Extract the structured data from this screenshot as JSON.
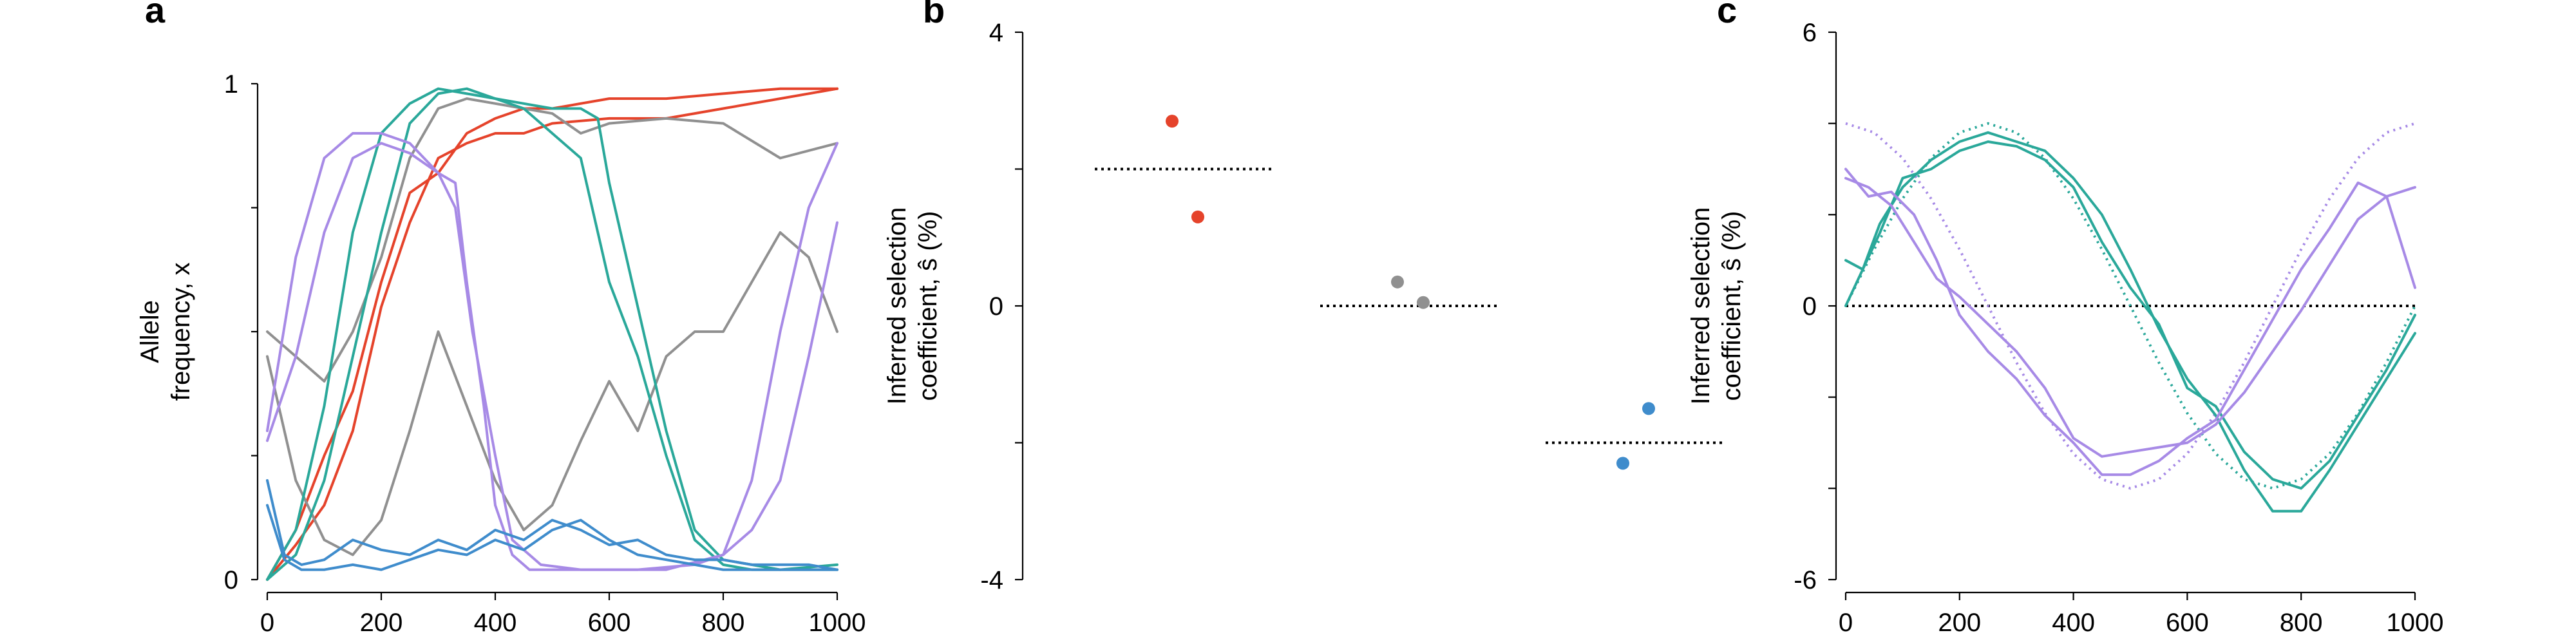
{
  "colors": {
    "red": "#e5432b",
    "gray": "#909090",
    "teal": "#2aa89a",
    "purple": "#a78ae6",
    "blue": "#3f8ccc"
  },
  "chart_data": [
    {
      "panel": "a",
      "type": "line",
      "ylabel": "Allele\nfrequency, x",
      "xlim": [
        0,
        1000
      ],
      "ylim": [
        0,
        1
      ],
      "xticks": [
        0,
        200,
        400,
        600,
        800,
        1000
      ],
      "yticks": [
        0,
        1
      ],
      "xtick_labels": [
        "0",
        "200",
        "400",
        "600",
        "800",
        "1000"
      ],
      "ytick_labels": [
        "0",
        "1"
      ],
      "series": [
        {
          "color": "red",
          "x": [
            0,
            50,
            100,
            150,
            200,
            250,
            300,
            350,
            400,
            450,
            500,
            600,
            700,
            800,
            900,
            1000
          ],
          "y": [
            0.0,
            0.1,
            0.25,
            0.38,
            0.6,
            0.78,
            0.82,
            0.9,
            0.93,
            0.95,
            0.95,
            0.97,
            0.97,
            0.98,
            0.99,
            0.99
          ]
        },
        {
          "color": "red",
          "x": [
            0,
            50,
            100,
            150,
            200,
            250,
            300,
            350,
            400,
            450,
            500,
            600,
            700,
            800,
            900,
            1000
          ],
          "y": [
            0.0,
            0.07,
            0.15,
            0.3,
            0.55,
            0.72,
            0.85,
            0.88,
            0.9,
            0.9,
            0.92,
            0.93,
            0.93,
            0.95,
            0.97,
            0.99
          ]
        },
        {
          "color": "gray",
          "x": [
            0,
            50,
            100,
            150,
            200,
            250,
            300,
            350,
            400,
            450,
            500,
            550,
            600,
            700,
            800,
            900,
            1000
          ],
          "y": [
            0.5,
            0.45,
            0.4,
            0.5,
            0.65,
            0.85,
            0.95,
            0.97,
            0.96,
            0.95,
            0.94,
            0.9,
            0.92,
            0.93,
            0.92,
            0.85,
            0.88
          ]
        },
        {
          "color": "gray",
          "x": [
            0,
            50,
            100,
            150,
            200,
            250,
            300,
            350,
            400,
            450,
            500,
            550,
            600,
            650,
            700,
            750,
            800,
            850,
            900,
            950,
            1000
          ],
          "y": [
            0.45,
            0.2,
            0.08,
            0.05,
            0.12,
            0.3,
            0.5,
            0.35,
            0.2,
            0.1,
            0.15,
            0.28,
            0.4,
            0.3,
            0.45,
            0.5,
            0.5,
            0.6,
            0.7,
            0.65,
            0.5
          ]
        },
        {
          "color": "teal",
          "x": [
            0,
            50,
            100,
            150,
            200,
            250,
            300,
            350,
            400,
            450,
            500,
            550,
            580,
            600,
            650,
            700,
            750,
            800,
            900,
            1000
          ],
          "y": [
            0.0,
            0.1,
            0.35,
            0.7,
            0.9,
            0.96,
            0.99,
            0.98,
            0.97,
            0.96,
            0.95,
            0.95,
            0.93,
            0.8,
            0.55,
            0.3,
            0.1,
            0.04,
            0.02,
            0.02
          ]
        },
        {
          "color": "teal",
          "x": [
            0,
            50,
            100,
            150,
            200,
            250,
            300,
            350,
            400,
            450,
            500,
            550,
            600,
            650,
            700,
            750,
            800,
            850,
            900,
            1000
          ],
          "y": [
            0.0,
            0.05,
            0.2,
            0.45,
            0.7,
            0.92,
            0.98,
            0.99,
            0.97,
            0.95,
            0.9,
            0.85,
            0.6,
            0.45,
            0.25,
            0.08,
            0.03,
            0.02,
            0.02,
            0.03
          ]
        },
        {
          "color": "purple",
          "x": [
            0,
            50,
            100,
            150,
            200,
            250,
            300,
            330,
            350,
            380,
            400,
            430,
            460,
            500,
            600,
            700,
            800,
            850,
            900,
            950,
            1000
          ],
          "y": [
            0.3,
            0.65,
            0.85,
            0.9,
            0.9,
            0.88,
            0.82,
            0.8,
            0.6,
            0.35,
            0.15,
            0.05,
            0.02,
            0.02,
            0.02,
            0.02,
            0.05,
            0.2,
            0.5,
            0.75,
            0.88
          ]
        },
        {
          "color": "purple",
          "x": [
            0,
            50,
            100,
            150,
            200,
            250,
            300,
            330,
            360,
            400,
            430,
            480,
            550,
            650,
            750,
            800,
            850,
            900,
            950,
            1000
          ],
          "y": [
            0.28,
            0.45,
            0.7,
            0.85,
            0.88,
            0.86,
            0.82,
            0.75,
            0.5,
            0.25,
            0.08,
            0.03,
            0.02,
            0.02,
            0.03,
            0.05,
            0.1,
            0.2,
            0.45,
            0.72
          ]
        },
        {
          "color": "blue",
          "x": [
            0,
            30,
            60,
            100,
            150,
            200,
            250,
            300,
            350,
            400,
            450,
            500,
            550,
            600,
            650,
            700,
            750,
            800,
            850,
            900,
            950,
            1000
          ],
          "y": [
            0.2,
            0.05,
            0.03,
            0.04,
            0.08,
            0.06,
            0.05,
            0.08,
            0.06,
            0.1,
            0.08,
            0.12,
            0.1,
            0.07,
            0.08,
            0.05,
            0.04,
            0.04,
            0.03,
            0.03,
            0.03,
            0.02
          ]
        },
        {
          "color": "blue",
          "x": [
            0,
            30,
            60,
            100,
            150,
            200,
            250,
            300,
            350,
            400,
            450,
            500,
            550,
            600,
            650,
            700,
            750,
            800,
            850,
            900,
            950,
            1000
          ],
          "y": [
            0.15,
            0.04,
            0.02,
            0.02,
            0.03,
            0.02,
            0.04,
            0.06,
            0.05,
            0.08,
            0.06,
            0.1,
            0.12,
            0.08,
            0.05,
            0.04,
            0.03,
            0.02,
            0.02,
            0.02,
            0.02,
            0.02
          ]
        }
      ]
    },
    {
      "panel": "b",
      "type": "scatter",
      "ylabel": "Inferred selection\ncoefficient, ŝ (%)",
      "ylim": [
        -4,
        4
      ],
      "yticks": [
        -4,
        0,
        4
      ],
      "ytick_labels": [
        "-4",
        "0",
        "4"
      ],
      "groups": [
        {
          "color": "red",
          "true_value": 2.0,
          "points": [
            2.7,
            1.3
          ],
          "point_offsets": [
            -0.1,
            0.1
          ]
        },
        {
          "color": "gray",
          "true_value": 0.0,
          "points": [
            0.35,
            0.05
          ],
          "point_offsets": [
            -0.1,
            0.1
          ]
        },
        {
          "color": "blue",
          "true_value": -2.0,
          "points": [
            -1.5,
            -2.3
          ],
          "point_offsets": [
            0.1,
            -0.1
          ]
        }
      ]
    },
    {
      "panel": "c",
      "type": "line",
      "ylabel": "Inferred selection\ncoefficient, ŝ (%)",
      "xlim": [
        0,
        1000
      ],
      "ylim": [
        -6,
        6
      ],
      "xticks": [
        0,
        200,
        400,
        600,
        800,
        1000
      ],
      "yticks": [
        -6,
        0,
        6
      ],
      "xtick_labels": [
        "0",
        "200",
        "400",
        "600",
        "800",
        "1000"
      ],
      "ytick_labels": [
        "-6",
        "0",
        "6"
      ],
      "zero_line": true,
      "theory": [
        {
          "color": "teal",
          "x": [
            0,
            50,
            100,
            150,
            200,
            250,
            300,
            350,
            400,
            450,
            500,
            550,
            600,
            650,
            700,
            750,
            800,
            850,
            900,
            950,
            1000
          ],
          "y": [
            0.0,
            1.24,
            2.35,
            3.24,
            3.8,
            4.0,
            3.8,
            3.24,
            2.35,
            1.24,
            0.0,
            -1.24,
            -2.35,
            -3.24,
            -3.8,
            -4.0,
            -3.8,
            -3.24,
            -2.35,
            -1.24,
            0.0
          ]
        },
        {
          "color": "purple",
          "x": [
            0,
            50,
            100,
            150,
            200,
            250,
            300,
            350,
            400,
            450,
            500,
            550,
            600,
            650,
            700,
            750,
            800,
            850,
            900,
            950,
            1000
          ],
          "y": [
            4.0,
            3.8,
            3.24,
            2.35,
            1.24,
            0.0,
            -1.24,
            -2.35,
            -3.24,
            -3.8,
            -4.0,
            -3.8,
            -3.24,
            -2.35,
            -1.24,
            0.0,
            1.24,
            2.35,
            3.24,
            3.8,
            4.0
          ]
        }
      ],
      "series": [
        {
          "color": "teal",
          "x": [
            0,
            30,
            60,
            100,
            150,
            200,
            250,
            300,
            350,
            400,
            450,
            500,
            550,
            600,
            650,
            700,
            750,
            800,
            850,
            900,
            950,
            1000
          ],
          "y": [
            0.0,
            0.8,
            1.8,
            2.6,
            3.2,
            3.6,
            3.8,
            3.6,
            3.4,
            2.8,
            2.0,
            0.8,
            -0.5,
            -1.6,
            -2.4,
            -3.6,
            -4.5,
            -4.5,
            -3.6,
            -2.6,
            -1.6,
            -0.6
          ]
        },
        {
          "color": "teal",
          "x": [
            0,
            30,
            60,
            100,
            150,
            200,
            250,
            300,
            350,
            400,
            450,
            500,
            550,
            600,
            650,
            700,
            750,
            800,
            850,
            900,
            950,
            1000
          ],
          "y": [
            1.0,
            0.8,
            1.6,
            2.8,
            3.0,
            3.4,
            3.6,
            3.5,
            3.2,
            2.6,
            1.4,
            0.4,
            -0.4,
            -1.8,
            -2.2,
            -3.2,
            -3.8,
            -4.0,
            -3.4,
            -2.4,
            -1.4,
            -0.2
          ]
        },
        {
          "color": "purple",
          "x": [
            0,
            40,
            80,
            120,
            160,
            200,
            250,
            300,
            350,
            400,
            450,
            500,
            550,
            600,
            650,
            700,
            750,
            800,
            850,
            900,
            950,
            1000
          ],
          "y": [
            3.0,
            2.4,
            2.5,
            2.0,
            1.0,
            -0.2,
            -1.0,
            -1.6,
            -2.4,
            -3.0,
            -3.7,
            -3.7,
            -3.4,
            -2.9,
            -2.5,
            -1.4,
            -0.3,
            0.8,
            1.7,
            2.7,
            2.4,
            0.4
          ]
        },
        {
          "color": "purple",
          "x": [
            0,
            40,
            80,
            120,
            160,
            200,
            250,
            300,
            350,
            400,
            450,
            500,
            550,
            600,
            650,
            700,
            750,
            800,
            850,
            900,
            950,
            1000
          ],
          "y": [
            2.8,
            2.6,
            2.2,
            1.4,
            0.6,
            0.2,
            -0.4,
            -1.0,
            -1.8,
            -2.9,
            -3.3,
            -3.2,
            -3.1,
            -3.0,
            -2.6,
            -1.9,
            -1.0,
            -0.1,
            0.9,
            1.9,
            2.4,
            2.6
          ]
        }
      ]
    }
  ]
}
